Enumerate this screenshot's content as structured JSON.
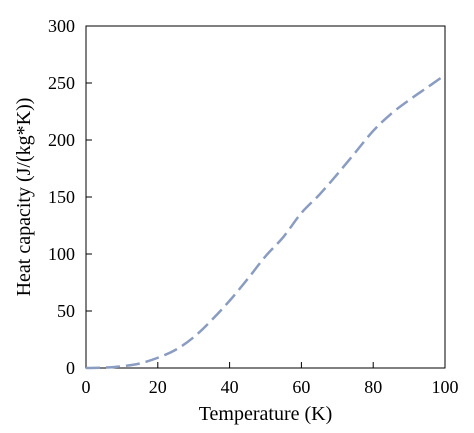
{
  "chart_data": {
    "type": "line",
    "xlabel": "Temperature (K)",
    "ylabel": "Heat capacity (J/(kg*K))",
    "xlim": [
      0,
      100
    ],
    "ylim": [
      0,
      300
    ],
    "xticks": [
      "0",
      "20",
      "40",
      "60",
      "80",
      "100"
    ],
    "yticks": [
      "0",
      "50",
      "100",
      "150",
      "200",
      "250",
      "300"
    ],
    "grid": false,
    "series": [
      {
        "color": "#8a9cc2",
        "style": "dashed",
        "x": [
          0,
          5,
          10,
          15,
          20,
          25,
          30,
          35,
          40,
          45,
          50,
          55,
          60,
          65,
          70,
          75,
          80,
          85,
          90,
          95,
          100
        ],
        "y": [
          0,
          0.3,
          1.5,
          4,
          9,
          16,
          27,
          42,
          59,
          78,
          98,
          115,
          136,
          152,
          170,
          189,
          208,
          223,
          235,
          246,
          257
        ]
      }
    ]
  }
}
